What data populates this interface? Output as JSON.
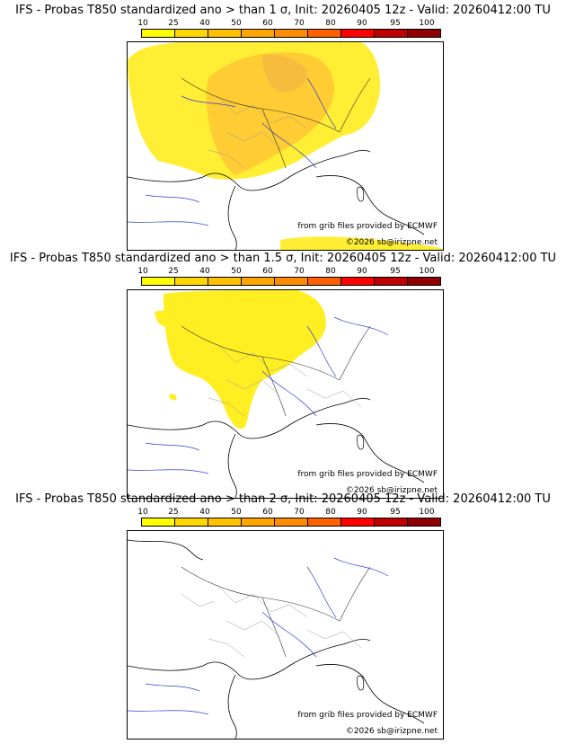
{
  "legend": {
    "labels": [
      "10",
      "25",
      "40",
      "50",
      "60",
      "70",
      "80",
      "90",
      "95",
      "100"
    ],
    "colors": [
      "#ffff00",
      "#ffd700",
      "#ffc000",
      "#ffa500",
      "#ff8c00",
      "#ff6000",
      "#ff0000",
      "#c00000",
      "#900000",
      "#600000"
    ]
  },
  "credits": {
    "source": "from grib files provided by ECMWF",
    "copyright": "©2026 sb@irizpne.net"
  },
  "panels": [
    {
      "title": "IFS - Probas T850  standardized ano > than 1 σ, Init: 20260405 12z - Valid: 20260412:00 TU",
      "threshold": "1 σ"
    },
    {
      "title": "IFS - Probas T850  standardized ano > than 1.5 σ, Init: 20260405 12z - Valid: 20260412:00 TU",
      "threshold": "1.5 σ"
    },
    {
      "title": "IFS - Probas T850  standardized ano > than 2 σ, Init: 20260405 12z - Valid: 20260412:00 TU",
      "threshold": "2 σ"
    }
  ]
}
